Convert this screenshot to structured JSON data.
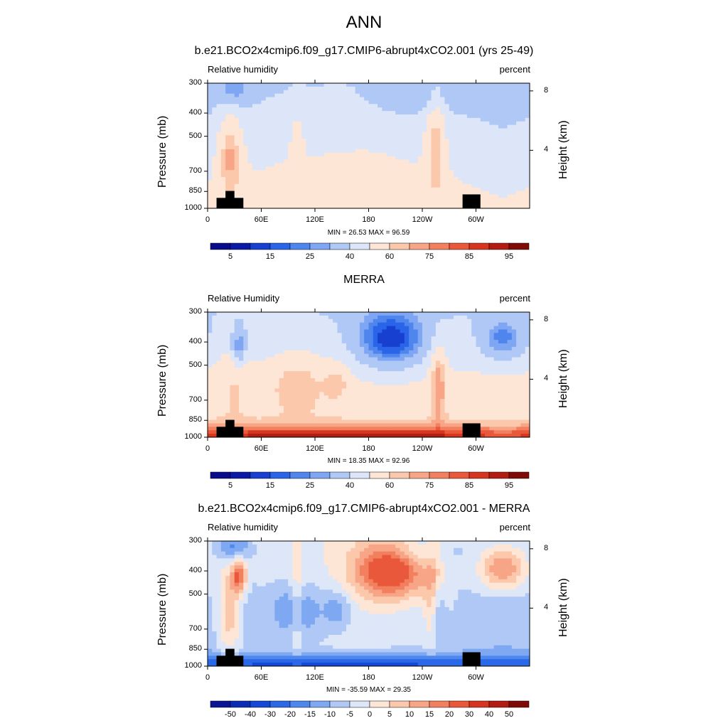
{
  "figure": {
    "title": "ANN"
  },
  "colors": {
    "abs_scale": [
      "#0a0a8c",
      "#0a1aa6",
      "#1740d0",
      "#2a64e8",
      "#4f86ee",
      "#7fa6f2",
      "#b0c8f6",
      "#dce6f8",
      "#fde6d6",
      "#fbc8ac",
      "#f7a586",
      "#f2805f",
      "#ea583b",
      "#d63620",
      "#b21c12",
      "#800a06"
    ],
    "diff_scale": [
      "#0a1596",
      "#0a2cb4",
      "#1448d6",
      "#2a68e8",
      "#4e88ee",
      "#7ea8f2",
      "#b0c8f6",
      "#dde7f8",
      "#fde6d6",
      "#fbc8ac",
      "#f7a586",
      "#f2805f",
      "#ea583b",
      "#d63620",
      "#b21c12",
      "#800a06"
    ],
    "topography": "#000000"
  },
  "chart_data": [
    {
      "type": "heatmap",
      "title": "b.e21.BCO2x4cmip6.f09_g17.CMIP6-abrupt4xCO2.001 (yrs 25-49)",
      "variable_label": "Relative humidity",
      "units": "percent",
      "ylabel": "Pressure (mb)",
      "ylabel_right": "Height (km)",
      "yticks": [
        "300",
        "400",
        "500",
        "700",
        "850",
        "1000"
      ],
      "ytick_values": [
        300,
        400,
        500,
        700,
        850,
        1000
      ],
      "yticks_right": [
        "8",
        "4"
      ],
      "yticks_right_values": [
        8,
        4
      ],
      "xticks": [
        "0",
        "60E",
        "120E",
        "180",
        "120W",
        "60W"
      ],
      "xtick_values": [
        0,
        60,
        120,
        180,
        240,
        300
      ],
      "xlim": [
        0,
        360
      ],
      "ylim": [
        1000,
        300
      ],
      "min_max_text": "MIN =  26.53  MAX =  96.59",
      "colorbar_labels": [
        "5",
        "15",
        "25",
        "40",
        "60",
        "75",
        "85",
        "95"
      ],
      "colorbar_label_bins": [
        1,
        3,
        5,
        7,
        9,
        11,
        13,
        15
      ],
      "scale": "abs",
      "min": 26.53,
      "max": 96.59,
      "grid": false
    },
    {
      "type": "heatmap",
      "title": "MERRA",
      "variable_label": "Relative Humidity",
      "units": "percent",
      "ylabel": "Pressure (mb)",
      "ylabel_right": "Height (km)",
      "yticks": [
        "300",
        "400",
        "500",
        "700",
        "850",
        "1000"
      ],
      "ytick_values": [
        300,
        400,
        500,
        700,
        850,
        1000
      ],
      "yticks_right": [
        "8",
        "4"
      ],
      "yticks_right_values": [
        8,
        4
      ],
      "xticks": [
        "0",
        "60E",
        "120E",
        "180",
        "120W",
        "60W"
      ],
      "xtick_values": [
        0,
        60,
        120,
        180,
        240,
        300
      ],
      "xlim": [
        0,
        360
      ],
      "ylim": [
        1000,
        300
      ],
      "min_max_text": "MIN =  18.35  MAX =  92.96",
      "colorbar_labels": [
        "5",
        "15",
        "25",
        "40",
        "60",
        "75",
        "85",
        "95"
      ],
      "colorbar_label_bins": [
        1,
        3,
        5,
        7,
        9,
        11,
        13,
        15
      ],
      "scale": "abs",
      "min": 18.35,
      "max": 92.96,
      "grid": false
    },
    {
      "type": "heatmap",
      "title": "b.e21.BCO2x4cmip6.f09_g17.CMIP6-abrupt4xCO2.001 - MERRA",
      "variable_label": "Relative humidity",
      "units": "percent",
      "ylabel": "Pressure (mb)",
      "ylabel_right": "Height (km)",
      "yticks": [
        "300",
        "400",
        "500",
        "700",
        "850",
        "1000"
      ],
      "ytick_values": [
        300,
        400,
        500,
        700,
        850,
        1000
      ],
      "yticks_right": [
        "8",
        "4"
      ],
      "yticks_right_values": [
        8,
        4
      ],
      "xticks": [
        "0",
        "60E",
        "120E",
        "180",
        "120W",
        "60W"
      ],
      "xtick_values": [
        0,
        60,
        120,
        180,
        240,
        300
      ],
      "xlim": [
        0,
        360
      ],
      "ylim": [
        1000,
        300
      ],
      "min_max_text": "MIN = -35.59  MAX =  29.35",
      "colorbar_labels": [
        "-50",
        "-40",
        "-30",
        "-20",
        "-15",
        "-10",
        "-5",
        "0",
        "5",
        "10",
        "15",
        "20",
        "30",
        "40",
        "50"
      ],
      "colorbar_label_bins": [
        1,
        2,
        3,
        4,
        5,
        6,
        7,
        8,
        9,
        10,
        11,
        12,
        13,
        14,
        15
      ],
      "scale": "diff",
      "min": -35.59,
      "max": 29.35,
      "grid": false
    }
  ]
}
